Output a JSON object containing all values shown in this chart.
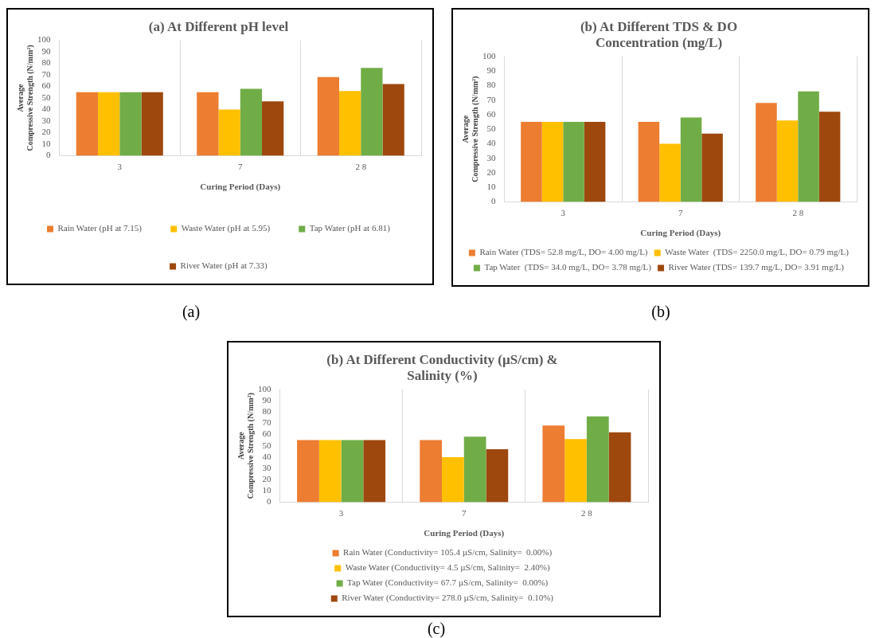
{
  "chart_data": [
    {
      "type": "bar",
      "title": "(a) At Different pH level",
      "xlabel": "Curing Period (Days)",
      "ylabel": "Average Compressive Strength (N/mm²)",
      "categories": [
        "3",
        "7",
        "2 8"
      ],
      "series": [
        {
          "name": "Rain Water (pH at 7.15)",
          "color": "#ed7d31",
          "values": [
            55,
            55,
            68
          ]
        },
        {
          "name": "Waste Water (pH at 5.95)",
          "color": "#ffc000",
          "values": [
            55,
            40,
            56
          ]
        },
        {
          "name": "Tap Water (pH at 6.81)",
          "color": "#70ad47",
          "values": [
            55,
            58,
            76
          ]
        },
        {
          "name": "River Water (pH at 7.33)",
          "color": "#9e480e",
          "values": [
            55,
            47,
            62
          ]
        }
      ],
      "ylim": [
        0,
        100
      ],
      "yticks": [
        0,
        10,
        20,
        30,
        40,
        50,
        60,
        70,
        80,
        90,
        100
      ],
      "grid": "x",
      "legend": "bottom",
      "annotations": [
        "(a)"
      ]
    },
    {
      "type": "bar",
      "title": "(b) At Different TDS & DO Concentration (mg/L)",
      "xlabel": "Curing Period (Days)",
      "ylabel": "Average Compressive Strength (N/mm²)",
      "categories": [
        "3",
        "7",
        "2 8"
      ],
      "series": [
        {
          "name": "Rain Water (TDS= 52.8 mg/L, DO= 4.00 mg/L)",
          "color": "#ed7d31",
          "values": [
            55,
            55,
            68
          ]
        },
        {
          "name": "Waste Water  (TDS= 2250.0 mg/L, DO= 0.79 mg/L)",
          "color": "#ffc000",
          "values": [
            55,
            40,
            56
          ]
        },
        {
          "name": "Tap Water  (TDS= 34.0 mg/L, DO= 3.78 mg/L)",
          "color": "#70ad47",
          "values": [
            55,
            58,
            76
          ]
        },
        {
          "name": "River Water (TDS= 139.7 mg/L, DO= 3.91 mg/L)",
          "color": "#9e480e",
          "values": [
            55,
            47,
            62
          ]
        }
      ],
      "ylim": [
        0,
        100
      ],
      "yticks": [
        0,
        10,
        20,
        30,
        40,
        50,
        60,
        70,
        80,
        90,
        100
      ],
      "grid": "x",
      "legend": "bottom",
      "annotations": [
        "(b)"
      ]
    },
    {
      "type": "bar",
      "title": "(b) At Different Conductivity (µS/cm) & Salinity (%)",
      "xlabel": "Curing Period (Days)",
      "ylabel": "Average Compressive Strength (N/mm²)",
      "categories": [
        "3",
        "7",
        "2 8"
      ],
      "series": [
        {
          "name": "Rain Water (Conductivity= 105.4 µS/cm, Salinity=  0.00%)",
          "color": "#ed7d31",
          "values": [
            55,
            55,
            68
          ]
        },
        {
          "name": "Waste Water (Conductivity= 4.5 µS/cm, Salinity=  2.40%)",
          "color": "#ffc000",
          "values": [
            55,
            40,
            56
          ]
        },
        {
          "name": "Tap Water (Conductivity= 67.7 µS/cm, Salinity=  0.00%)",
          "color": "#70ad47",
          "values": [
            55,
            58,
            76
          ]
        },
        {
          "name": "River Water (Conductivity= 278.0 µS/cm, Salinity=  0.10%)",
          "color": "#9e480e",
          "values": [
            55,
            47,
            62
          ]
        }
      ],
      "ylim": [
        0,
        100
      ],
      "yticks": [
        0,
        10,
        20,
        30,
        40,
        50,
        60,
        70,
        80,
        90,
        100
      ],
      "grid": "x",
      "legend": "bottom",
      "annotations": [
        "(c)"
      ]
    }
  ]
}
